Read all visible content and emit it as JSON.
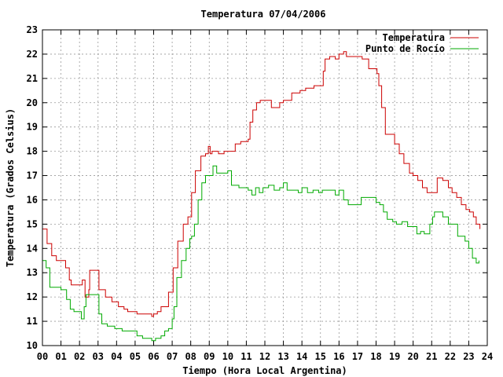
{
  "chart_data": {
    "type": "line",
    "title": "Temperatura 07/04/2006",
    "xlabel": "Tiempo (Hora Local Argentina)",
    "ylabel": "Temperatura (Grados Celsius)",
    "xlim": [
      0,
      24
    ],
    "ylim": [
      10,
      23
    ],
    "x_ticks": [
      "00",
      "01",
      "02",
      "03",
      "04",
      "05",
      "06",
      "07",
      "08",
      "09",
      "10",
      "11",
      "12",
      "13",
      "14",
      "15",
      "16",
      "17",
      "18",
      "19",
      "20",
      "21",
      "22",
      "23",
      "24"
    ],
    "y_ticks": [
      10,
      11,
      12,
      13,
      14,
      15,
      16,
      17,
      18,
      19,
      20,
      21,
      22,
      23
    ],
    "grid": true,
    "legend_position": "top-right",
    "series": [
      {
        "name": "Temperatura",
        "color": "#cc0000",
        "x": [
          0.0,
          0.25,
          0.5,
          0.75,
          1.0,
          1.25,
          1.45,
          1.55,
          1.8,
          2.05,
          2.15,
          2.3,
          2.5,
          2.55,
          2.8,
          3.05,
          3.4,
          3.75,
          4.1,
          4.4,
          4.6,
          5.1,
          5.55,
          5.9,
          6.0,
          6.2,
          6.4,
          6.5,
          6.8,
          6.95,
          7.05,
          7.3,
          7.6,
          7.85,
          8.05,
          8.25,
          8.55,
          8.8,
          8.95,
          9.05,
          9.15,
          9.3,
          9.5,
          9.8,
          10.1,
          10.4,
          10.5,
          10.7,
          11.1,
          11.2,
          11.35,
          11.55,
          11.75,
          12.0,
          12.2,
          12.35,
          12.55,
          12.8,
          13.0,
          13.25,
          13.45,
          13.65,
          13.9,
          14.2,
          14.45,
          14.65,
          14.95,
          15.15,
          15.25,
          15.5,
          15.8,
          16.0,
          16.25,
          16.4,
          16.55,
          16.8,
          17.05,
          17.25,
          17.4,
          17.6,
          17.9,
          18.05,
          18.15,
          18.3,
          18.5,
          18.8,
          19.0,
          19.25,
          19.5,
          19.8,
          20.0,
          20.25,
          20.5,
          20.75,
          21.05,
          21.3,
          21.6,
          21.9,
          22.1,
          22.35,
          22.6,
          22.85,
          23.05,
          23.25,
          23.4,
          23.6
        ],
        "values": [
          14.8,
          14.2,
          13.7,
          13.5,
          13.5,
          13.2,
          12.7,
          12.5,
          12.5,
          12.5,
          12.7,
          12.0,
          12.3,
          13.1,
          13.1,
          12.3,
          12.0,
          11.8,
          11.6,
          11.5,
          11.4,
          11.3,
          11.3,
          11.2,
          11.3,
          11.4,
          11.6,
          11.6,
          12.2,
          12.2,
          13.2,
          14.3,
          15.0,
          15.3,
          16.3,
          17.2,
          17.8,
          17.9,
          18.2,
          17.9,
          18.0,
          18.0,
          17.9,
          18.0,
          18.0,
          18.3,
          18.3,
          18.4,
          18.5,
          19.2,
          19.7,
          20.0,
          20.1,
          20.1,
          20.1,
          19.8,
          19.8,
          20.0,
          20.1,
          20.1,
          20.4,
          20.4,
          20.5,
          20.6,
          20.6,
          20.7,
          20.7,
          21.3,
          21.8,
          21.9,
          21.8,
          22.0,
          22.1,
          21.9,
          21.9,
          21.9,
          21.9,
          21.8,
          21.8,
          21.4,
          21.4,
          21.2,
          20.7,
          19.8,
          18.7,
          18.7,
          18.3,
          17.9,
          17.5,
          17.1,
          17.0,
          16.8,
          16.5,
          16.3,
          16.3,
          16.9,
          16.8,
          16.5,
          16.3,
          16.1,
          15.8,
          15.6,
          15.5,
          15.3,
          15.0,
          14.8
        ]
      },
      {
        "name": "Punto de Rocío",
        "color": "#00aa00",
        "x": [
          0.0,
          0.2,
          0.4,
          0.75,
          1.0,
          1.3,
          1.5,
          1.7,
          2.0,
          2.1,
          2.25,
          2.35,
          2.6,
          2.9,
          3.05,
          3.2,
          3.5,
          3.9,
          4.3,
          4.7,
          5.1,
          5.4,
          5.6,
          5.9,
          6.1,
          6.4,
          6.6,
          6.8,
          7.0,
          7.1,
          7.25,
          7.5,
          7.75,
          7.95,
          8.05,
          8.2,
          8.4,
          8.6,
          8.8,
          9.0,
          9.2,
          9.4,
          9.7,
          10.0,
          10.2,
          10.4,
          10.6,
          10.8,
          11.1,
          11.3,
          11.5,
          11.7,
          11.9,
          12.2,
          12.5,
          12.8,
          13.0,
          13.2,
          13.5,
          13.8,
          14.0,
          14.3,
          14.6,
          14.9,
          15.1,
          15.5,
          15.8,
          16.0,
          16.25,
          16.5,
          16.7,
          16.9,
          17.2,
          17.5,
          17.8,
          18.0,
          18.2,
          18.4,
          18.6,
          18.9,
          19.1,
          19.4,
          19.7,
          20.0,
          20.2,
          20.4,
          20.6,
          20.9,
          21.05,
          21.15,
          21.3,
          21.6,
          21.9,
          22.2,
          22.4,
          22.6,
          22.8,
          23.0,
          23.2,
          23.4,
          23.55
        ],
        "values": [
          13.5,
          13.2,
          12.4,
          12.4,
          12.3,
          11.9,
          11.5,
          11.4,
          11.4,
          11.1,
          11.6,
          12.1,
          12.1,
          12.1,
          11.3,
          10.9,
          10.8,
          10.7,
          10.6,
          10.6,
          10.4,
          10.3,
          10.3,
          10.2,
          10.3,
          10.4,
          10.6,
          10.7,
          11.1,
          11.6,
          12.8,
          13.5,
          14.0,
          14.4,
          14.5,
          15.0,
          16.0,
          16.7,
          17.0,
          17.0,
          17.4,
          17.1,
          17.1,
          17.2,
          16.6,
          16.6,
          16.5,
          16.5,
          16.4,
          16.2,
          16.5,
          16.3,
          16.5,
          16.6,
          16.4,
          16.5,
          16.7,
          16.4,
          16.4,
          16.3,
          16.5,
          16.3,
          16.4,
          16.3,
          16.4,
          16.4,
          16.2,
          16.4,
          16.0,
          15.8,
          15.8,
          15.8,
          16.1,
          16.1,
          16.1,
          15.9,
          15.8,
          15.5,
          15.2,
          15.1,
          15.0,
          15.1,
          14.9,
          14.9,
          14.6,
          14.7,
          14.6,
          15.0,
          15.3,
          15.5,
          15.5,
          15.3,
          15.0,
          15.0,
          14.5,
          14.5,
          14.3,
          14.0,
          13.6,
          13.4,
          13.5
        ]
      }
    ]
  }
}
